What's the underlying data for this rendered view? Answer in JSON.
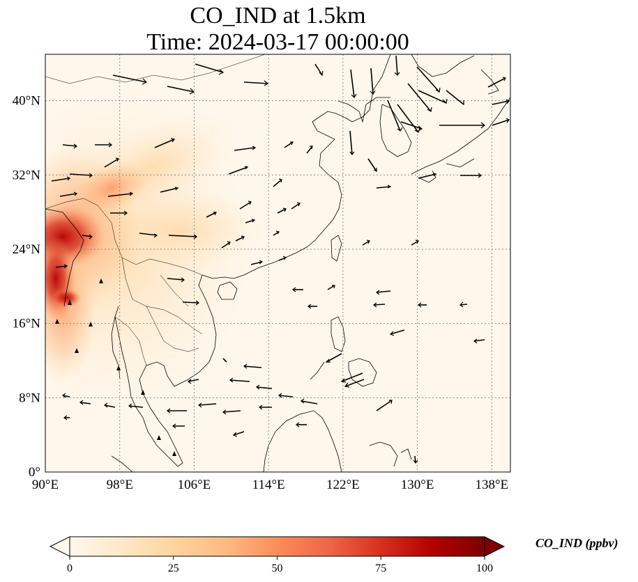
{
  "map": {
    "title_line1": "CO_IND at 1.5km",
    "title_line2": "Time: 2024-03-17 00:00:00",
    "extent": {
      "lon": [
        90,
        140
      ],
      "lat": [
        0,
        45
      ]
    },
    "lon_ticks": [
      {
        "value": 90,
        "label": "90°E"
      },
      {
        "value": 98,
        "label": "98°E"
      },
      {
        "value": 106,
        "label": "106°E"
      },
      {
        "value": 114,
        "label": "114°E"
      },
      {
        "value": 122,
        "label": "122°E"
      },
      {
        "value": 130,
        "label": "130°E"
      },
      {
        "value": 138,
        "label": "138°E"
      }
    ],
    "lat_ticks": [
      {
        "value": 0,
        "label": "0°"
      },
      {
        "value": 8,
        "label": "8°N"
      },
      {
        "value": 16,
        "label": "16°N"
      },
      {
        "value": 24,
        "label": "24°N"
      },
      {
        "value": 32,
        "label": "32°N"
      },
      {
        "value": 40,
        "label": "40°N"
      }
    ],
    "gridlines": true,
    "field": "CO_IND",
    "level": "1.5km",
    "wind_vectors": true
  },
  "colorbar": {
    "label": "CO_IND (ppbv)",
    "min": 0,
    "max": 100,
    "ticks": [
      {
        "value": 0,
        "label": "0"
      },
      {
        "value": 25,
        "label": "25"
      },
      {
        "value": 50,
        "label": "50"
      },
      {
        "value": 75,
        "label": "75"
      },
      {
        "value": 100,
        "label": "100"
      }
    ],
    "extend": "both",
    "colormap": [
      "#fff7ec",
      "#fee8c8",
      "#fdd49e",
      "#fdbb84",
      "#fc8d59",
      "#ef6548",
      "#d7301f",
      "#b30000",
      "#7f0000"
    ]
  },
  "colors": {
    "background_low": "#fff7ec",
    "high_concentration": "#b30000",
    "arrows": "#000000",
    "grid": "#888888"
  }
}
